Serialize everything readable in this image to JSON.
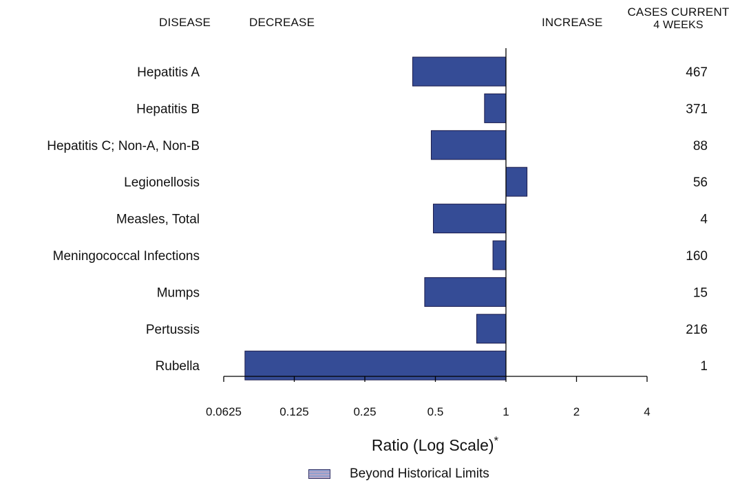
{
  "header": {
    "disease": "DISEASE",
    "decrease": "DECREASE",
    "increase": "INCREASE",
    "cases_line1": "CASES CURRENT",
    "cases_line2": "4 WEEKS"
  },
  "legend": {
    "label": "Beyond Historical Limits"
  },
  "colors": {
    "bar": "#354c96",
    "bar_border": "#1a1a4a",
    "axis": "#000000",
    "beyond_limits_hatch_a": "#b9a7c6",
    "beyond_limits_hatch_b": "#8fa0cf"
  },
  "chart_data": {
    "type": "bar",
    "orientation": "horizontal",
    "x_scale": "log2",
    "xlabel": "Ratio (Log Scale)",
    "xlabel_footnote_mark": "*",
    "xlim": [
      0.0625,
      4
    ],
    "baseline": 1,
    "x_ticks": [
      0.0625,
      0.125,
      0.25,
      0.5,
      1,
      2,
      4
    ],
    "x_tick_labels": [
      "0.0625",
      "0.125",
      "0.25",
      "0.5",
      "1",
      "2",
      "4"
    ],
    "categories": [
      "Hepatitis A",
      "Hepatitis B",
      "Hepatitis C; Non-A, Non-B",
      "Legionellosis",
      "Measles, Total",
      "Meningococcal Infections",
      "Mumps",
      "Pertussis",
      "Rubella"
    ],
    "values": [
      0.4,
      0.81,
      0.48,
      1.23,
      0.49,
      0.88,
      0.45,
      0.75,
      0.077
    ],
    "cases_current_4_weeks": [
      "467",
      "371",
      "88",
      "56",
      "4",
      "160",
      "15",
      "216",
      "1"
    ],
    "beyond_historical_limits": [
      false,
      false,
      false,
      false,
      false,
      false,
      false,
      false,
      false
    ],
    "grid": false,
    "legend_position": "bottom-center"
  }
}
